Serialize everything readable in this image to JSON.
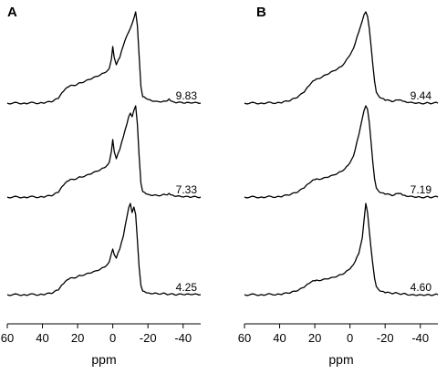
{
  "chart_data": [
    {
      "type": "line",
      "panel": "A",
      "xlabel": "ppm",
      "xlim": [
        60,
        -50
      ],
      "x_reversed": true,
      "xticks": [
        60,
        40,
        20,
        0,
        -20,
        -40
      ],
      "xtick_labels": [
        "60",
        "40",
        "20",
        "0",
        "-20",
        "-40"
      ],
      "traces": [
        {
          "label": "9.83",
          "points": [
            [
              60,
              0
            ],
            [
              50,
              0
            ],
            [
              40,
              0.003
            ],
            [
              35,
              0.012
            ],
            [
              31,
              0.05
            ],
            [
              28,
              0.13
            ],
            [
              25,
              0.18
            ],
            [
              20,
              0.21
            ],
            [
              15,
              0.25
            ],
            [
              10,
              0.29
            ],
            [
              5,
              0.33
            ],
            [
              2,
              0.38
            ],
            [
              0.8,
              0.48
            ],
            [
              0,
              0.62
            ],
            [
              -0.8,
              0.5
            ],
            [
              -2,
              0.42
            ],
            [
              -4,
              0.5
            ],
            [
              -6,
              0.63
            ],
            [
              -8,
              0.74
            ],
            [
              -10,
              0.82
            ],
            [
              -11,
              0.87
            ],
            [
              -12,
              0.93
            ],
            [
              -13,
              1.0
            ],
            [
              -14,
              0.85
            ],
            [
              -15,
              0.52
            ],
            [
              -16,
              0.18
            ],
            [
              -17,
              0.07
            ],
            [
              -20,
              0.04
            ],
            [
              -25,
              0.02
            ],
            [
              -30,
              0.02
            ],
            [
              -32,
              0.045
            ],
            [
              -35,
              0.01
            ],
            [
              -40,
              0
            ],
            [
              -45,
              0
            ],
            [
              -50,
              0
            ]
          ]
        },
        {
          "label": "7.33",
          "points": [
            [
              60,
              0
            ],
            [
              50,
              0
            ],
            [
              40,
              0.003
            ],
            [
              35,
              0.012
            ],
            [
              31,
              0.05
            ],
            [
              28,
              0.13
            ],
            [
              25,
              0.18
            ],
            [
              20,
              0.21
            ],
            [
              15,
              0.24
            ],
            [
              10,
              0.28
            ],
            [
              5,
              0.32
            ],
            [
              2,
              0.38
            ],
            [
              0.8,
              0.5
            ],
            [
              0,
              0.63
            ],
            [
              -0.8,
              0.5
            ],
            [
              -2,
              0.42
            ],
            [
              -4,
              0.52
            ],
            [
              -6,
              0.66
            ],
            [
              -8,
              0.8
            ],
            [
              -9,
              0.88
            ],
            [
              -10,
              0.92
            ],
            [
              -11,
              0.88
            ],
            [
              -12,
              0.95
            ],
            [
              -13,
              1.0
            ],
            [
              -14,
              0.8
            ],
            [
              -15,
              0.45
            ],
            [
              -16,
              0.15
            ],
            [
              -17,
              0.06
            ],
            [
              -20,
              0.03
            ],
            [
              -25,
              0.02
            ],
            [
              -30,
              0.025
            ],
            [
              -32,
              0.04
            ],
            [
              -35,
              0.01
            ],
            [
              -40,
              0
            ],
            [
              -45,
              0
            ],
            [
              -50,
              0
            ]
          ]
        },
        {
          "label": "4.25",
          "points": [
            [
              60,
              0
            ],
            [
              50,
              0
            ],
            [
              40,
              0.003
            ],
            [
              35,
              0.012
            ],
            [
              31,
              0.05
            ],
            [
              28,
              0.12
            ],
            [
              25,
              0.17
            ],
            [
              20,
              0.2
            ],
            [
              15,
              0.23
            ],
            [
              10,
              0.26
            ],
            [
              5,
              0.3
            ],
            [
              2,
              0.36
            ],
            [
              0.8,
              0.45
            ],
            [
              0,
              0.5
            ],
            [
              -0.8,
              0.44
            ],
            [
              -2,
              0.4
            ],
            [
              -4,
              0.5
            ],
            [
              -6,
              0.64
            ],
            [
              -8,
              0.85
            ],
            [
              -9,
              0.95
            ],
            [
              -10,
              1.0
            ],
            [
              -11,
              0.9
            ],
            [
              -12,
              0.96
            ],
            [
              -13,
              0.88
            ],
            [
              -14,
              0.6
            ],
            [
              -15,
              0.3
            ],
            [
              -16,
              0.1
            ],
            [
              -17,
              0.04
            ],
            [
              -20,
              0.02
            ],
            [
              -25,
              0.015
            ],
            [
              -30,
              0.01
            ],
            [
              -35,
              0
            ],
            [
              -40,
              0
            ],
            [
              -45,
              0
            ],
            [
              -50,
              0
            ]
          ]
        }
      ]
    },
    {
      "type": "line",
      "panel": "B",
      "xlabel": "ppm",
      "xlim": [
        60,
        -50
      ],
      "x_reversed": true,
      "xticks": [
        60,
        40,
        20,
        0,
        -20,
        -40
      ],
      "xtick_labels": [
        "60",
        "40",
        "20",
        "0",
        "-20",
        "-40"
      ],
      "traces": [
        {
          "label": "9.44",
          "points": [
            [
              60,
              0
            ],
            [
              50,
              0
            ],
            [
              40,
              0.005
            ],
            [
              35,
              0.02
            ],
            [
              30,
              0.06
            ],
            [
              26,
              0.12
            ],
            [
              22,
              0.22
            ],
            [
              20,
              0.25
            ],
            [
              15,
              0.3
            ],
            [
              10,
              0.35
            ],
            [
              5,
              0.4
            ],
            [
              1,
              0.5
            ],
            [
              -2,
              0.6
            ],
            [
              -5,
              0.78
            ],
            [
              -7,
              0.9
            ],
            [
              -8,
              0.97
            ],
            [
              -9,
              1.0
            ],
            [
              -10,
              0.95
            ],
            [
              -11,
              0.82
            ],
            [
              -12,
              0.62
            ],
            [
              -13,
              0.42
            ],
            [
              -14,
              0.24
            ],
            [
              -15,
              0.12
            ],
            [
              -17,
              0.06
            ],
            [
              -20,
              0.03
            ],
            [
              -25,
              0.02
            ],
            [
              -28,
              0.035
            ],
            [
              -30,
              0.02
            ],
            [
              -35,
              0.01
            ],
            [
              -40,
              0
            ],
            [
              -45,
              0
            ],
            [
              -50,
              0
            ]
          ]
        },
        {
          "label": "7.19",
          "points": [
            [
              60,
              0
            ],
            [
              50,
              0
            ],
            [
              40,
              0.005
            ],
            [
              35,
              0.02
            ],
            [
              30,
              0.05
            ],
            [
              26,
              0.1
            ],
            [
              22,
              0.17
            ],
            [
              20,
              0.19
            ],
            [
              15,
              0.21
            ],
            [
              10,
              0.24
            ],
            [
              5,
              0.28
            ],
            [
              1,
              0.35
            ],
            [
              -2,
              0.45
            ],
            [
              -5,
              0.68
            ],
            [
              -7,
              0.86
            ],
            [
              -8,
              0.95
            ],
            [
              -9,
              1.0
            ],
            [
              -10,
              0.96
            ],
            [
              -11,
              0.82
            ],
            [
              -12,
              0.6
            ],
            [
              -13,
              0.38
            ],
            [
              -14,
              0.2
            ],
            [
              -15,
              0.1
            ],
            [
              -17,
              0.05
            ],
            [
              -20,
              0.03
            ],
            [
              -25,
              0.02
            ],
            [
              -28,
              0.04
            ],
            [
              -30,
              0.02
            ],
            [
              -35,
              0.01
            ],
            [
              -40,
              0
            ],
            [
              -45,
              0
            ],
            [
              -50,
              0
            ]
          ]
        },
        {
          "label": "4.60",
          "points": [
            [
              60,
              0
            ],
            [
              50,
              0
            ],
            [
              40,
              0.005
            ],
            [
              35,
              0.015
            ],
            [
              30,
              0.04
            ],
            [
              26,
              0.08
            ],
            [
              22,
              0.14
            ],
            [
              20,
              0.15
            ],
            [
              15,
              0.17
            ],
            [
              10,
              0.19
            ],
            [
              5,
              0.22
            ],
            [
              1,
              0.27
            ],
            [
              -2,
              0.33
            ],
            [
              -5,
              0.45
            ],
            [
              -7,
              0.62
            ],
            [
              -8,
              0.82
            ],
            [
              -9,
              1.0
            ],
            [
              -10,
              0.9
            ],
            [
              -11,
              0.7
            ],
            [
              -12,
              0.5
            ],
            [
              -13,
              0.33
            ],
            [
              -14,
              0.18
            ],
            [
              -15,
              0.09
            ],
            [
              -17,
              0.04
            ],
            [
              -20,
              0.02
            ],
            [
              -25,
              0.015
            ],
            [
              -30,
              0.01
            ],
            [
              -35,
              0
            ],
            [
              -40,
              0
            ],
            [
              -45,
              0
            ],
            [
              -50,
              0
            ]
          ]
        }
      ]
    }
  ]
}
